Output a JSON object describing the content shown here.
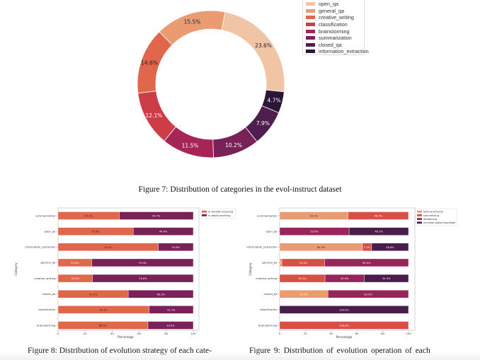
{
  "chart_data": [
    {
      "type": "pie",
      "variant": "donut",
      "title": "",
      "categories": [
        "open_qa",
        "general_qa",
        "creative_writing",
        "classification",
        "brainstorming",
        "summarization",
        "closed_qa",
        "information_extraction"
      ],
      "values": [
        23.6,
        15.5,
        14.6,
        12.1,
        11.5,
        10.2,
        7.9,
        4.7
      ],
      "labels": [
        "23.6%",
        "15.5%",
        "14.6%",
        "12.1%",
        "11.5%",
        "10.2%",
        "7.9%",
        "4.7%"
      ],
      "colors": [
        "#f0c4a4",
        "#eb9b72",
        "#e0674b",
        "#cd3d48",
        "#a72456",
        "#7a2258",
        "#4e1e4f",
        "#2a1636"
      ],
      "label_colors": [
        "#222",
        "#222",
        "#222",
        "#fff",
        "#fff",
        "#fff",
        "#fff",
        "#fff"
      ],
      "legend_position": "top-right",
      "caption": "Figure 7: Distribution of categories in the evol-instruct dataset"
    },
    {
      "type": "bar",
      "orientation": "horizontal",
      "stacked": true,
      "categories": [
        "summarization",
        "open_qa",
        "information_extraction",
        "general_qa",
        "creative_writing",
        "closed_qa",
        "classification",
        "brainstorming"
      ],
      "series": [
        {
          "name": "in-breadth-evolving",
          "color": "#e0674b",
          "values": [
            45.3,
            55.6,
            74.1,
            25.0,
            25.4,
            51.9,
            67.3,
            66.5
          ],
          "labels": [
            "45.3%",
            "55.6%",
            "74.1%",
            "25.0%",
            "25.4%",
            "51.9%",
            "67.3%",
            "66.5%"
          ]
        },
        {
          "name": "in-depth-evolving",
          "color": "#7a2258",
          "values": [
            54.7,
            44.4,
            25.9,
            75.0,
            74.6,
            48.1,
            32.7,
            33.5
          ],
          "labels": [
            "54.7%",
            "44.4%",
            "25.9%",
            "75.0%",
            "74.6%",
            "48.1%",
            "32.7%",
            "33.5%"
          ]
        }
      ],
      "xlabel": "Percentage",
      "ylabel": "Category",
      "xlim": [
        0,
        100
      ],
      "xticks": [
        "0",
        "20",
        "40",
        "60",
        "80",
        "100"
      ],
      "legend_position": "outside-top-right",
      "caption": "Figure 8: Distribution of evolution strategy of each cate-"
    },
    {
      "type": "bar",
      "orientation": "horizontal",
      "stacked": true,
      "categories": [
        "summarization",
        "open_qa",
        "information_extraction",
        "general_qa",
        "creative_writing",
        "closed_qa",
        "classification",
        "brainstorming"
      ],
      "series": [
        {
          "name": "add-constraints",
          "color": "#eb9b72",
          "values": [
            53.1,
            0,
            64.3,
            1.7,
            0,
            37.5,
            0,
            0
          ],
          "labels": [
            "53.1%",
            "",
            "64.3%",
            "1.7%",
            "",
            "37.5%",
            "",
            ""
          ]
        },
        {
          "name": "concretizing",
          "color": "#d94f45",
          "values": [
            46.9,
            0,
            7.1,
            33.3,
            35.2,
            0,
            0,
            100.0
          ],
          "labels": [
            "46.9%",
            "",
            "7.1%",
            "33.3%",
            "35.2%",
            "",
            "",
            "100.0%"
          ]
        },
        {
          "name": "deepening",
          "color": "#98255a",
          "values": [
            0,
            53.9,
            0,
            65.0,
            30.4,
            62.5,
            0,
            0
          ],
          "labels": [
            "",
            "53.9%",
            "",
            "65.0%",
            "30.4%",
            "62.5%",
            "",
            ""
          ]
        },
        {
          "name": "increase-reasoning-steps",
          "color": "#4b1d4b",
          "values": [
            0,
            46.1,
            28.6,
            0,
            34.4,
            0,
            100.0,
            0
          ],
          "labels": [
            "",
            "46.1%",
            "28.6%",
            "",
            "34.4%",
            "",
            "100.0%",
            ""
          ]
        }
      ],
      "xlabel": "Percentage",
      "ylabel": "Category",
      "xlim": [
        0,
        100
      ],
      "xticks": [
        "0",
        "20",
        "40",
        "60",
        "80",
        "100"
      ],
      "legend_position": "outside-top-right",
      "caption": "Figure 9: Distribution of evolution operation of each"
    }
  ]
}
